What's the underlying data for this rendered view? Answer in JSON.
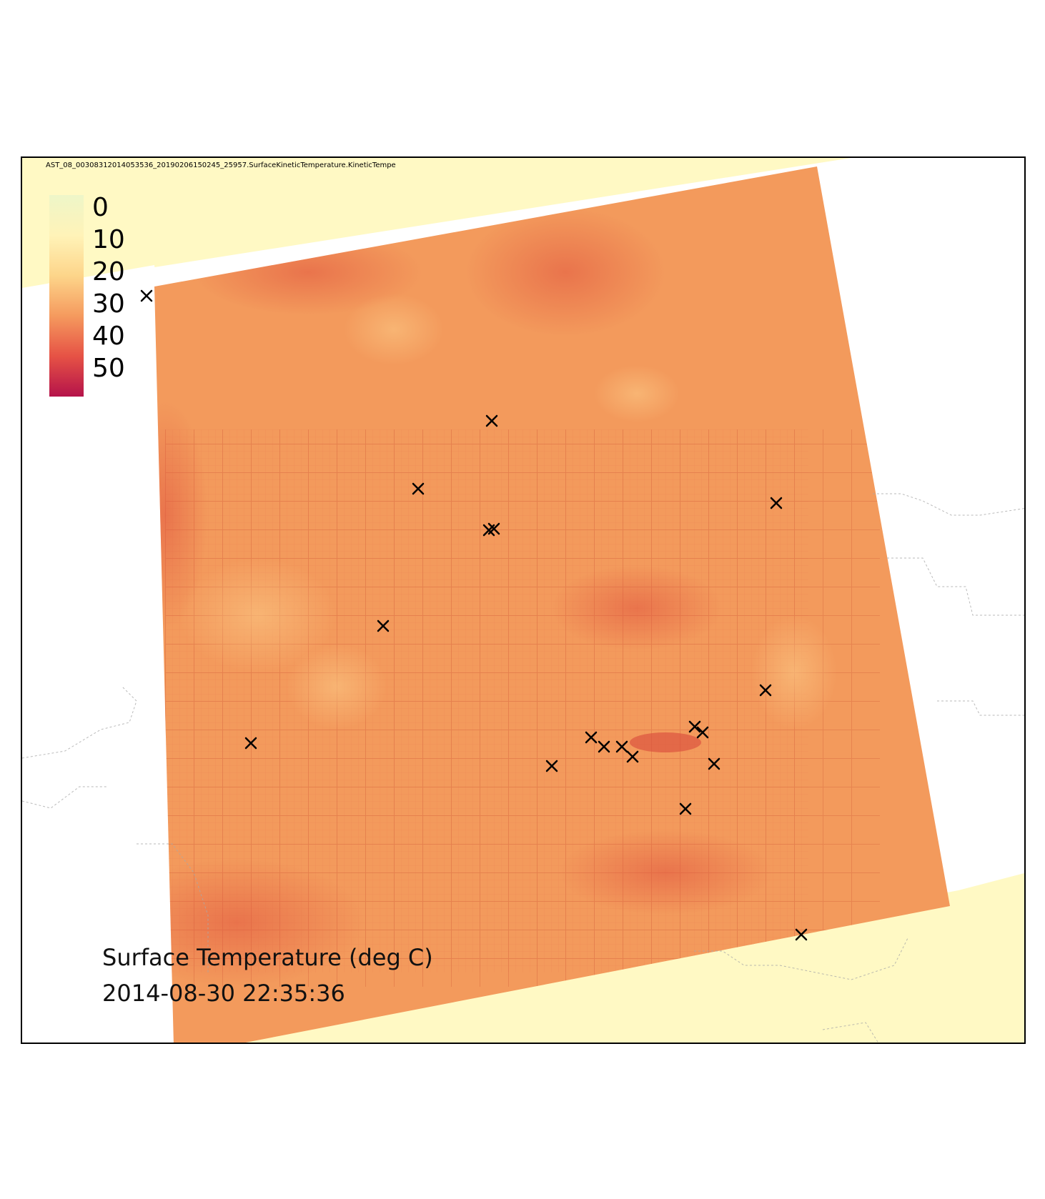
{
  "map": {
    "source_file": "AST_08_00308312014053536_20190206150245_25957.SurfaceKineticTemperature.KineticTempe",
    "caption_title": "Surface Temperature (deg C)",
    "caption_time": "2014-08-30 22:35:36",
    "background_color": "#fff9c4",
    "swath_color": "#f39a5c",
    "nodata_color": "#ffffff",
    "marker_color": "#000000",
    "marker_symbol": "x-marker-icon"
  },
  "legend": {
    "labels": [
      "0",
      "10",
      "20",
      "30",
      "40",
      "50"
    ],
    "colors": [
      "#eef6c8",
      "#fff3b8",
      "#fdd58a",
      "#f59a5e",
      "#e65245",
      "#b5134a"
    ]
  }
}
